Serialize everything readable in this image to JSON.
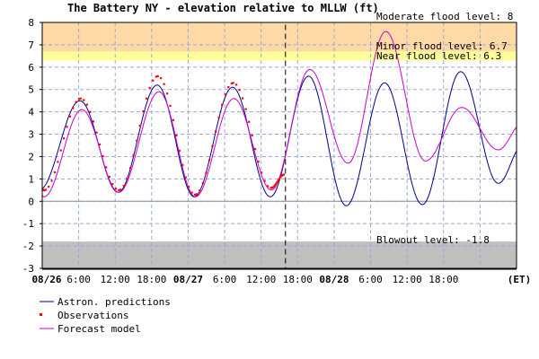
{
  "chart_data": {
    "type": "line",
    "title": "The Battery NY  -  elevation relative to MLLW (ft)",
    "xlabel": "",
    "ylabel": "",
    "ylim": [
      -3,
      8
    ],
    "xlim_hours_from_08_26_00": [
      0,
      78
    ],
    "grid": true,
    "yticks": [
      "-3",
      "-2",
      "-1",
      "0",
      "1",
      "2",
      "3",
      "4",
      "5",
      "6",
      "7",
      "8"
    ],
    "xticks": [
      {
        "label": "08/26",
        "bold": true
      },
      {
        "label": "6:00",
        "bold": false
      },
      {
        "label": "12:00",
        "bold": false
      },
      {
        "label": "18:00",
        "bold": false
      },
      {
        "label": "08/27",
        "bold": true
      },
      {
        "label": "6:00",
        "bold": false
      },
      {
        "label": "12:00",
        "bold": false
      },
      {
        "label": "18:00",
        "bold": false
      },
      {
        "label": "08/28",
        "bold": true
      },
      {
        "label": "6:00",
        "bold": false
      },
      {
        "label": "12:00",
        "bold": false
      },
      {
        "label": "18:00",
        "bold": false
      }
    ],
    "timezone_label": "(ET)",
    "now_marker_hours": 40,
    "bands": {
      "moderate": {
        "label": "Moderate flood level: 8",
        "from": 6.7,
        "to": 8,
        "color": "#ffd9a6"
      },
      "minor": {
        "label": "Minor flood level: 6.7",
        "from": 6.3,
        "to": 6.7,
        "color": "#ffff99"
      },
      "near": {
        "label": "Near flood level: 6.3",
        "value": 6.3
      },
      "blowout": {
        "label": "Blowout level: -1.8",
        "from": -3,
        "to": -1.8,
        "color": "#c0c0c0"
      }
    },
    "series": [
      {
        "name": "Astron. predictions",
        "color": "#00008b",
        "style": "line",
        "extrema": [
          [
            -0.5,
            0.5
          ],
          [
            6.2,
            4.5
          ],
          [
            12.5,
            0.4
          ],
          [
            18.9,
            5.2
          ],
          [
            25,
            0.2
          ],
          [
            31.3,
            5.1
          ],
          [
            37.5,
            0.2
          ],
          [
            43.8,
            5.6
          ],
          [
            50,
            -0.2
          ],
          [
            56.3,
            5.3
          ],
          [
            62.5,
            -0.15
          ],
          [
            68.8,
            5.8
          ],
          [
            75,
            0.8
          ],
          [
            79,
            2.5
          ]
        ]
      },
      {
        "name": "Observations",
        "color": "#ff0000",
        "style": "dots",
        "extrema": [
          [
            -0.5,
            0.6
          ],
          [
            0.3,
            0.5
          ],
          [
            6.3,
            4.6
          ],
          [
            12.6,
            0.5
          ],
          [
            19,
            5.6
          ],
          [
            25.1,
            0.3
          ],
          [
            31.4,
            5.3
          ],
          [
            37.6,
            0.6
          ],
          [
            39.8,
            1.2
          ]
        ]
      },
      {
        "name": "Forecast model",
        "color": "#cc00cc",
        "style": "line",
        "extrema": [
          [
            -0.5,
            0.4
          ],
          [
            0.3,
            0.2
          ],
          [
            6.5,
            4.1
          ],
          [
            12.6,
            0.4
          ],
          [
            19.2,
            4.9
          ],
          [
            25.2,
            0.2
          ],
          [
            31.5,
            4.6
          ],
          [
            37.7,
            0.5
          ],
          [
            44,
            5.9
          ],
          [
            50.3,
            1.7
          ],
          [
            56.5,
            7.6
          ],
          [
            63,
            1.8
          ],
          [
            69,
            4.2
          ],
          [
            75,
            2.3
          ],
          [
            79,
            3.5
          ]
        ]
      }
    ]
  }
}
